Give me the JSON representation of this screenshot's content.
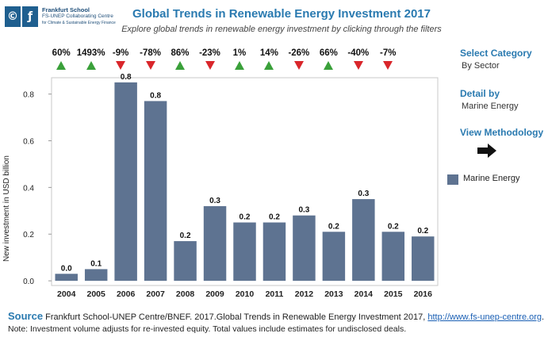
{
  "logo": {
    "mark1": "©",
    "mark2": "ƒ",
    "line1": "Frankfurt School",
    "line2": "FS-UNEP Collaborating Centre",
    "line3": "for Climate & Sustainable Energy Finance"
  },
  "header": {
    "title": "Global Trends in Renewable Energy Investment 2017",
    "subtitle": "Explore global trends in renewable energy investment by clicking through the filters"
  },
  "yoy_changes": [
    {
      "label": "60%",
      "direction": "up"
    },
    {
      "label": "1493%",
      "direction": "up"
    },
    {
      "label": "-9%",
      "direction": "down"
    },
    {
      "label": "-78%",
      "direction": "down"
    },
    {
      "label": "86%",
      "direction": "up"
    },
    {
      "label": "-23%",
      "direction": "down"
    },
    {
      "label": "1%",
      "direction": "up"
    },
    {
      "label": "14%",
      "direction": "up"
    },
    {
      "label": "-26%",
      "direction": "down"
    },
    {
      "label": "66%",
      "direction": "up"
    },
    {
      "label": "-40%",
      "direction": "down"
    },
    {
      "label": "-7%",
      "direction": "down"
    }
  ],
  "colors": {
    "up": "#3aa03a",
    "down": "#d9262b",
    "bar": "#5e7391",
    "accent": "#2a7ab0"
  },
  "filters": {
    "category_heading": "Select Category",
    "category_value": "By Sector",
    "detail_heading": "Detail by",
    "detail_value": "Marine Energy",
    "methodology_label": "View Methodology",
    "methodology_icon": "right-arrow-icon"
  },
  "chart_data": {
    "type": "bar",
    "categories": [
      "2004",
      "2005",
      "2006",
      "2007",
      "2008",
      "2009",
      "2010",
      "2011",
      "2012",
      "2013",
      "2014",
      "2015",
      "2016"
    ],
    "series": [
      {
        "name": "Marine Energy",
        "values": [
          0.03,
          0.05,
          0.85,
          0.77,
          0.17,
          0.32,
          0.25,
          0.25,
          0.28,
          0.21,
          0.35,
          0.21,
          0.19
        ]
      }
    ],
    "data_labels": [
      "0.0",
      "0.1",
      "0.8",
      "0.8",
      "0.2",
      "0.3",
      "0.2",
      "0.2",
      "0.3",
      "0.2",
      "0.3",
      "0.2",
      "0.2"
    ],
    "ylabel": "New investment in USD billion",
    "yticks": [
      0.0,
      0.2,
      0.4,
      0.6,
      0.8
    ],
    "ytick_labels": [
      "0.0",
      "0.2",
      "0.4",
      "0.6",
      "0.8"
    ],
    "ylim": [
      -0.02,
      0.87
    ],
    "legend": "right"
  },
  "footer": {
    "source_heading": "Source",
    "source_text": " Frankfurt School-UNEP Centre/BNEF. 2017.Global Trends in Renewable Energy Investment 2017, ",
    "source_link": "http://www.fs-unep-centre.org",
    "source_end": ".",
    "note": "Note: Investment volume adjusts for re-invested equity. Total values include estimates for undisclosed deals."
  }
}
